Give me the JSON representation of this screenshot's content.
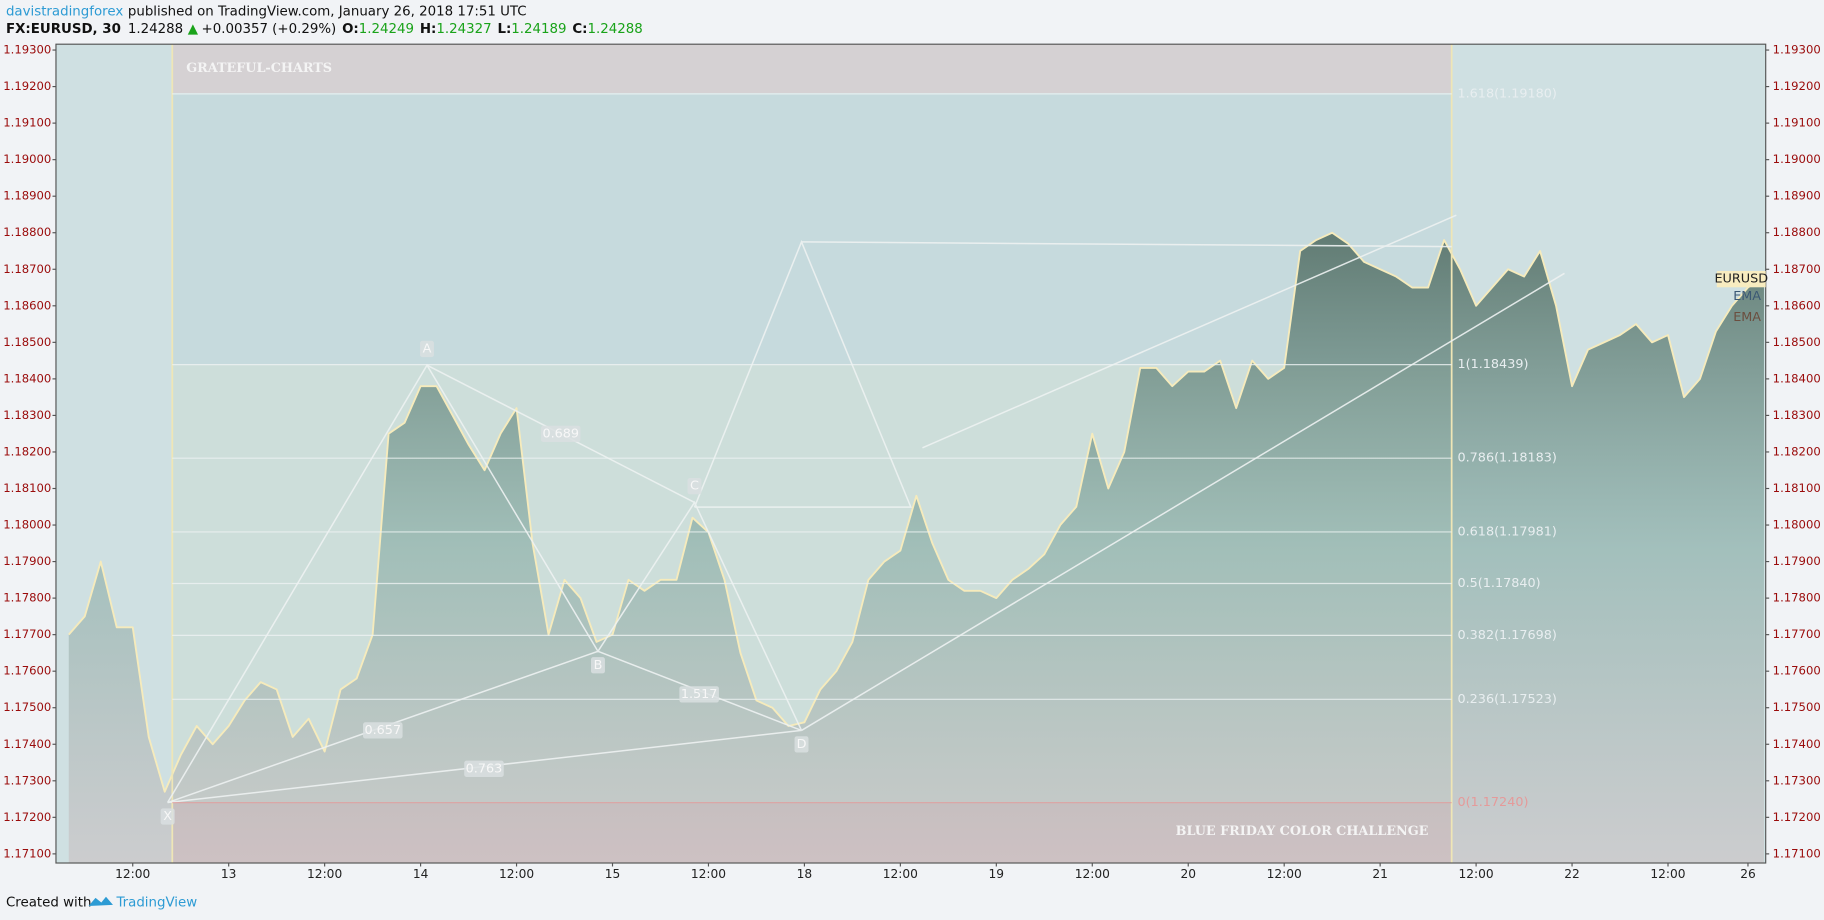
{
  "header": {
    "author": "davistradingforex",
    "published": "published on TradingView.com, January 26, 2018 17:51 UTC",
    "symbol": "FX:EURUSD, 30",
    "last": "1.24288",
    "change": "+0.00357 (+0.29%)",
    "ohlc": [
      {
        "key": "O:",
        "value": "1.24249"
      },
      {
        "key": "H:",
        "value": "1.24327"
      },
      {
        "key": "L:",
        "value": "1.24189"
      },
      {
        "key": "C:",
        "value": "1.24288"
      }
    ]
  },
  "chart_data": {
    "type": "area",
    "categories": [
      null,
      null,
      null,
      null,
      "12:00",
      null,
      null,
      null,
      null,
      null,
      "13",
      null,
      null,
      null,
      null,
      null,
      "12:00",
      null,
      null,
      null,
      null,
      null,
      "14",
      null,
      null,
      null,
      null,
      null,
      "12:00",
      null,
      null,
      null,
      null,
      null,
      "15",
      null,
      null,
      null,
      null,
      null,
      "12:00",
      null,
      null,
      null,
      null,
      null,
      "18",
      null,
      null,
      null,
      null,
      null,
      "12:00",
      null,
      null,
      null,
      null,
      null,
      "19",
      null,
      null,
      null,
      null,
      null,
      "12:00",
      null,
      null,
      null,
      null,
      null,
      "20",
      null,
      null,
      null,
      null,
      null,
      "12:00",
      null,
      null,
      null,
      null,
      null,
      "21",
      null,
      null,
      null,
      null,
      null,
      "12:00",
      null,
      null,
      null,
      null,
      null,
      "22",
      null,
      null,
      null,
      null,
      null,
      "12:00",
      null,
      null,
      null,
      null,
      "26",
      null
    ],
    "series": [
      {
        "name": "EURUSD",
        "color": "#f6ebbc",
        "values": [
          1.177,
          1.1775,
          1.179,
          1.1772,
          1.1772,
          1.1742,
          1.1727,
          1.1737,
          1.1745,
          1.174,
          1.1745,
          1.1752,
          1.1757,
          1.1755,
          1.1742,
          1.1747,
          1.1738,
          1.1755,
          1.1758,
          1.177,
          1.1825,
          1.1828,
          1.1838,
          1.1838,
          1.183,
          1.1822,
          1.1815,
          1.1825,
          1.1832,
          1.1795,
          1.177,
          1.1785,
          1.178,
          1.1768,
          1.177,
          1.1785,
          1.1782,
          1.1785,
          1.1785,
          1.1802,
          1.1798,
          1.1785,
          1.1765,
          1.1752,
          1.175,
          1.1745,
          1.1746,
          1.1755,
          1.176,
          1.1768,
          1.1785,
          1.179,
          1.1793,
          1.1808,
          1.1795,
          1.1785,
          1.1782,
          1.1782,
          1.178,
          1.1785,
          1.1788,
          1.1792,
          1.18,
          1.1805,
          1.1825,
          1.181,
          1.182,
          1.1843,
          1.1843,
          1.1838,
          1.1842,
          1.1842,
          1.1845,
          1.1832,
          1.1845,
          1.184,
          1.1843,
          1.1875,
          1.1878,
          1.188,
          1.1877,
          1.1872,
          1.187,
          1.1868,
          1.1865,
          1.1865,
          1.1878,
          1.187,
          1.186,
          1.1865,
          1.187,
          1.1868,
          1.1875,
          1.186,
          1.1838,
          1.1848,
          1.185,
          1.1852,
          1.1855,
          1.185,
          1.1852,
          1.1835,
          1.184,
          1.1853,
          1.186,
          1.1865,
          1.1868
        ]
      }
    ],
    "indicators": [
      "EMA",
      "EMA"
    ],
    "ylim": [
      1.17075,
      1.19316
    ],
    "yticks": [
      {
        "value": 1.171,
        "label": "1.17100"
      },
      {
        "value": 1.172,
        "label": "1.17200"
      },
      {
        "value": 1.173,
        "label": "1.17300"
      },
      {
        "value": 1.174,
        "label": "1.17400"
      },
      {
        "value": 1.175,
        "label": "1.17500"
      },
      {
        "value": 1.176,
        "label": "1.17600"
      },
      {
        "value": 1.177,
        "label": "1.17700"
      },
      {
        "value": 1.178,
        "label": "1.17800"
      },
      {
        "value": 1.179,
        "label": "1.17900"
      },
      {
        "value": 1.18,
        "label": "1.18000"
      },
      {
        "value": 1.181,
        "label": "1.18100"
      },
      {
        "value": 1.182,
        "label": "1.18200"
      },
      {
        "value": 1.183,
        "label": "1.18300"
      },
      {
        "value": 1.184,
        "label": "1.18400"
      },
      {
        "value": 1.185,
        "label": "1.18500"
      },
      {
        "value": 1.186,
        "label": "1.18600"
      },
      {
        "value": 1.187,
        "label": "1.18700"
      },
      {
        "value": 1.188,
        "label": "1.18800"
      },
      {
        "value": 1.189,
        "label": "1.18900"
      },
      {
        "value": 1.19,
        "label": "1.19000"
      },
      {
        "value": 1.191,
        "label": "1.19100"
      },
      {
        "value": 1.192,
        "label": "1.19200"
      },
      {
        "value": 1.193,
        "label": "1.19300"
      }
    ],
    "grid": false,
    "watermark": "GRATEFUL-CHARTS",
    "caption": "BLUE FRIDAY COLOR CHALLENGE",
    "pattern_labels": [
      "X",
      "A",
      "B",
      "C",
      "D"
    ],
    "ratios": [
      0.689,
      1.517,
      0.657,
      0.763
    ],
    "fib_levels": [
      {
        "value": 1.1918,
        "label": "1.618(1.19180)"
      },
      {
        "value": 1.18439,
        "label": "1(1.18439)"
      },
      {
        "value": 1.18183,
        "label": "0.786(1.18183)"
      },
      {
        "value": 1.17981,
        "label": "0.618(1.17981)"
      },
      {
        "value": 1.1784,
        "label": "0.5(1.17840)"
      },
      {
        "value": 1.17698,
        "label": "0.382(1.17698)"
      },
      {
        "value": 1.17523,
        "label": "0.236(1.17523)"
      },
      {
        "value": 1.1724,
        "label": "0(1.17240)"
      }
    ]
  },
  "footer": {
    "created": "Created with",
    "brand": "TradingView"
  }
}
